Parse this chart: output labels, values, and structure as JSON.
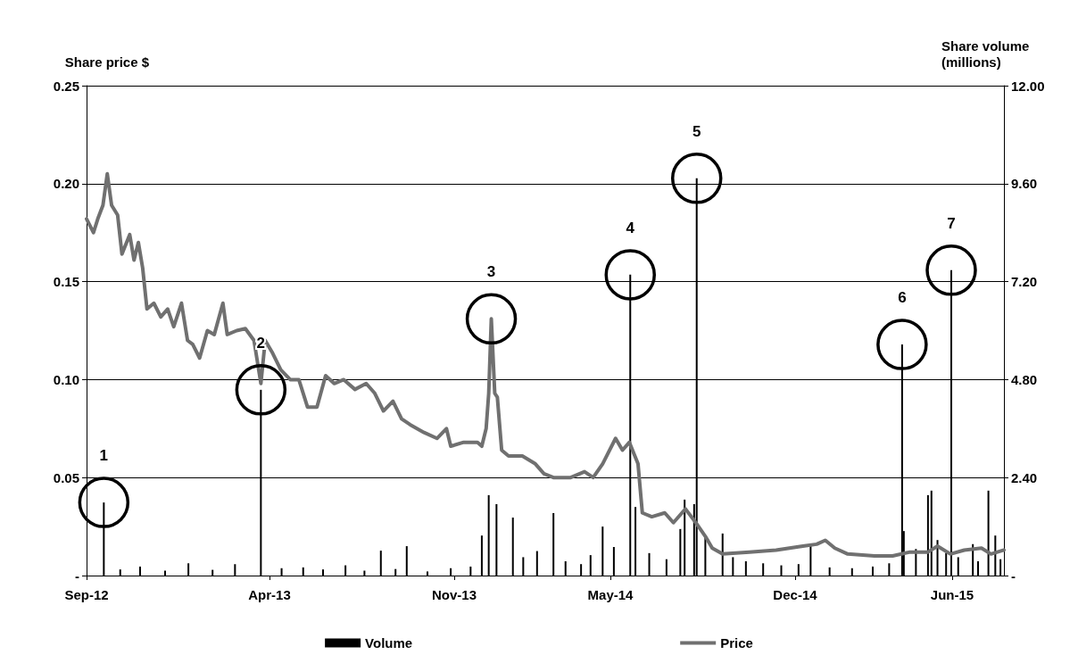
{
  "chart_data": {
    "type": "bar",
    "ylabel": "Share price $",
    "y2label": "Share volume\n(millions)",
    "xlim": [
      "2012-09-01",
      "2015-07-31"
    ],
    "xticks": [
      {
        "value": "2012-09-01",
        "label": "Sep-12"
      },
      {
        "value": "2013-04-01",
        "label": "Apr-13"
      },
      {
        "value": "2013-11-01",
        "label": "Nov-13"
      },
      {
        "value": "2014-05-01",
        "label": "May-14"
      },
      {
        "value": "2014-12-01",
        "label": "Dec-14"
      },
      {
        "value": "2015-06-01",
        "label": "Jun-15"
      }
    ],
    "ylim": [
      0,
      0.25
    ],
    "yticks": [
      {
        "value": 0,
        "label": "-"
      },
      0.05,
      {
        "value": 0.1,
        "label": "0.10"
      },
      0.15,
      {
        "value": 0.2,
        "label": "0.20"
      },
      0.25
    ],
    "y2lim": [
      0,
      12
    ],
    "y2ticks": [
      {
        "value": 0,
        "label": "-"
      },
      {
        "value": 2.4,
        "label": "2.40"
      },
      {
        "value": 4.8,
        "label": "4.80"
      },
      {
        "value": 7.2,
        "label": "7.20"
      },
      {
        "value": 9.6,
        "label": "9.60"
      },
      {
        "value": 12,
        "label": "12.00"
      }
    ],
    "grid": "y",
    "legend": "bottom",
    "marker": "none",
    "series": [
      {
        "name": "Volume",
        "axis": "y2",
        "color": "#000000",
        "x": [
          "2012-09-21",
          "2012-10-10",
          "2012-11-02",
          "2012-12-01",
          "2012-12-28",
          "2013-01-25",
          "2013-02-20",
          "2013-03-22",
          "2013-04-15",
          "2013-05-10",
          "2013-06-02",
          "2013-06-28",
          "2013-07-20",
          "2013-08-08",
          "2013-08-25",
          "2013-09-07",
          "2013-10-01",
          "2013-10-28",
          "2013-11-20",
          "2013-12-03",
          "2013-12-11",
          "2013-12-20",
          "2014-01-08",
          "2014-01-20",
          "2014-02-05",
          "2014-02-24",
          "2014-03-10",
          "2014-03-28",
          "2014-04-08",
          "2014-04-22",
          "2014-05-05",
          "2014-05-24",
          "2014-05-30",
          "2014-06-15",
          "2014-07-05",
          "2014-07-21",
          "2014-07-26",
          "2014-08-06",
          "2014-08-09",
          "2014-08-19",
          "2014-09-08",
          "2014-09-20",
          "2014-10-05",
          "2014-10-25",
          "2014-11-15",
          "2014-12-05",
          "2014-12-19",
          "2015-01-10",
          "2015-02-05",
          "2015-03-01",
          "2015-03-20",
          "2015-04-03",
          "2015-04-04",
          "2015-04-06",
          "2015-04-20",
          "2015-05-04",
          "2015-05-08",
          "2015-05-15",
          "2015-05-25",
          "2015-05-31",
          "2015-06-08",
          "2015-06-25",
          "2015-07-01",
          "2015-07-13",
          "2015-07-21",
          "2015-07-27"
        ],
        "values": [
          1.79,
          0.15,
          0.22,
          0.12,
          0.3,
          0.14,
          0.28,
          4.55,
          0.18,
          0.2,
          0.15,
          0.25,
          0.12,
          0.61,
          0.16,
          0.72,
          0.1,
          0.18,
          0.22,
          0.98,
          1.97,
          1.75,
          1.42,
          0.45,
          0.6,
          1.53,
          0.35,
          0.28,
          0.5,
          1.2,
          0.7,
          7.37,
          1.68,
          0.55,
          0.4,
          1.14,
          1.86,
          1.75,
          9.73,
          0.98,
          1.03,
          0.45,
          0.35,
          0.3,
          0.25,
          0.28,
          0.77,
          0.2,
          0.18,
          0.22,
          0.3,
          null,
          5.66,
          1.09,
          0.65,
          1.97,
          2.08,
          0.87,
          0.55,
          7.48,
          0.45,
          0.77,
          0.35,
          2.08,
          0.98,
          0.4
        ]
      },
      {
        "name": "Price",
        "type": "line",
        "color": "#707070",
        "x": [
          "2012-09-01",
          "2012-09-09",
          "2012-09-14",
          "2012-09-20",
          "2012-09-25",
          "2012-09-30",
          "2012-10-07",
          "2012-10-12",
          "2012-10-21",
          "2012-10-26",
          "2012-10-31",
          "2012-11-05",
          "2012-11-10",
          "2012-11-18",
          "2012-11-26",
          "2012-12-04",
          "2012-12-11",
          "2012-12-20",
          "2012-12-27",
          "2013-01-02",
          "2013-01-10",
          "2013-01-19",
          "2013-01-27",
          "2013-02-06",
          "2013-02-11",
          "2013-02-22",
          "2013-03-04",
          "2013-03-14",
          "2013-03-22",
          "2013-03-27",
          "2013-04-04",
          "2013-04-14",
          "2013-04-25",
          "2013-05-05",
          "2013-05-15",
          "2013-05-26",
          "2013-06-05",
          "2013-06-15",
          "2013-06-26",
          "2013-07-09",
          "2013-07-22",
          "2013-08-01",
          "2013-08-11",
          "2013-08-22",
          "2013-09-01",
          "2013-09-11",
          "2013-09-27",
          "2013-10-12",
          "2013-10-23",
          "2013-10-28",
          "2013-11-12",
          "2013-11-28",
          "2013-12-03",
          "2013-12-08",
          "2013-12-11",
          "2013-12-14",
          "2013-12-18",
          "2013-12-21",
          "2013-12-26",
          "2014-01-03",
          "2014-01-19",
          "2014-02-03",
          "2014-02-13",
          "2014-02-24",
          "2014-03-16",
          "2014-04-01",
          "2014-04-11",
          "2014-04-22",
          "2014-05-07",
          "2014-05-15",
          "2014-05-23",
          "2014-06-02",
          "2014-06-07",
          "2014-06-18",
          "2014-07-03",
          "2014-07-13",
          "2014-07-27",
          "2014-08-08",
          "2014-08-19",
          "2014-08-27",
          "2014-09-08",
          "2014-10-09",
          "2014-11-09",
          "2014-12-10",
          "2014-12-26",
          "2015-01-05",
          "2015-01-16",
          "2015-01-31",
          "2015-03-03",
          "2015-03-24",
          "2015-04-13",
          "2015-05-04",
          "2015-05-15",
          "2015-05-30",
          "2015-06-15",
          "2015-07-05",
          "2015-07-16",
          "2015-07-31"
        ],
        "values": [
          0.182,
          0.175,
          0.182,
          0.189,
          0.205,
          0.189,
          0.184,
          0.164,
          0.174,
          0.161,
          0.17,
          0.157,
          0.136,
          0.139,
          0.132,
          0.136,
          0.127,
          0.139,
          0.12,
          0.118,
          0.111,
          0.125,
          0.123,
          0.139,
          0.123,
          0.125,
          0.126,
          0.12,
          0.098,
          0.12,
          0.114,
          0.105,
          0.1,
          0.1,
          0.086,
          0.086,
          0.102,
          0.098,
          0.1,
          0.095,
          0.098,
          0.093,
          0.084,
          0.089,
          0.08,
          0.077,
          0.073,
          0.07,
          0.075,
          0.066,
          0.068,
          0.068,
          0.066,
          0.075,
          0.093,
          0.131,
          0.093,
          0.091,
          0.064,
          0.061,
          0.061,
          0.057,
          0.052,
          0.05,
          0.05,
          0.053,
          0.05,
          0.057,
          0.07,
          0.064,
          0.068,
          0.057,
          0.032,
          0.03,
          0.032,
          0.027,
          0.034,
          0.027,
          0.02,
          0.014,
          0.011,
          0.012,
          0.013,
          0.015,
          0.016,
          0.018,
          0.014,
          0.011,
          0.01,
          0.01,
          0.012,
          0.012,
          0.015,
          0.011,
          0.013,
          0.014,
          0.011,
          0.013
        ]
      }
    ],
    "annotations": [
      {
        "text": "1",
        "x": "2012-09-21",
        "y": 0.0373
      },
      {
        "text": "2",
        "x": "2013-03-22",
        "y": 0.0948
      },
      {
        "text": "3",
        "x": "2013-12-14",
        "y": 0.131
      },
      {
        "text": "4",
        "x": "2014-05-24",
        "y": 0.1535
      },
      {
        "text": "5",
        "x": "2014-08-09",
        "y": 0.2027
      },
      {
        "text": "6",
        "x": "2015-04-04",
        "y": 0.1179
      },
      {
        "text": "7",
        "x": "2015-05-31",
        "y": 0.1558
      }
    ]
  }
}
